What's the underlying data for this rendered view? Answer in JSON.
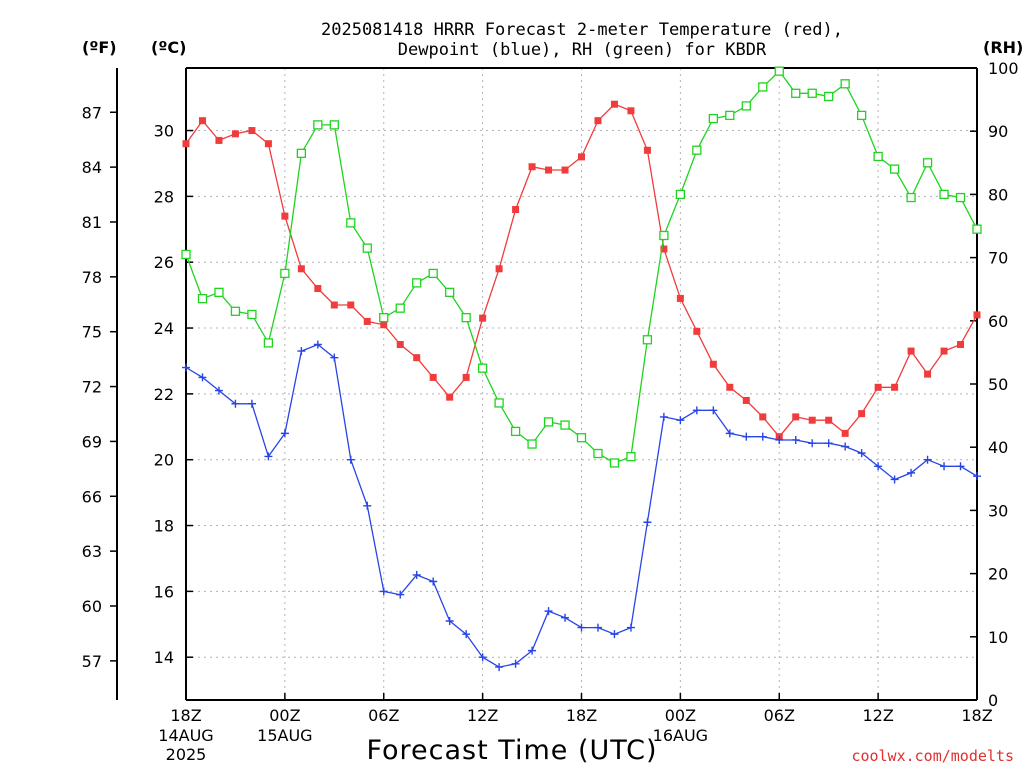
{
  "chart_data": {
    "type": "line",
    "title_line1": "2025081418 HRRR Forecast 2-meter Temperature (red),",
    "title_line2": "Dewpoint (blue), RH (green) for KBDR",
    "left_unit_f": "(ºF)",
    "left_unit_c": "(ºC)",
    "right_unit": "(RH)",
    "xlabel": "Forecast Time (UTC)",
    "watermark": "coolwx.com/modelts",
    "x_ticks": [
      {
        "h": 0,
        "label": "18Z",
        "sub": [
          "14AUG",
          "2025"
        ]
      },
      {
        "h": 6,
        "label": "00Z",
        "sub": [
          "15AUG"
        ]
      },
      {
        "h": 12,
        "label": "06Z",
        "sub": []
      },
      {
        "h": 18,
        "label": "12Z",
        "sub": []
      },
      {
        "h": 24,
        "label": "18Z",
        "sub": []
      },
      {
        "h": 30,
        "label": "00Z",
        "sub": [
          "16AUG"
        ]
      },
      {
        "h": 36,
        "label": "06Z",
        "sub": []
      },
      {
        "h": 42,
        "label": "12Z",
        "sub": []
      },
      {
        "h": 48,
        "label": "18Z",
        "sub": []
      }
    ],
    "x_range_hours": [
      0,
      48
    ],
    "c_ticks": [
      14,
      16,
      18,
      20,
      22,
      24,
      26,
      28,
      30
    ],
    "c_range": [
      12.7,
      31.9
    ],
    "f_ticks": [
      57,
      60,
      63,
      66,
      69,
      72,
      75,
      78,
      81,
      84,
      87
    ],
    "rh_ticks": [
      0,
      10,
      20,
      30,
      40,
      50,
      60,
      70,
      80,
      90,
      100
    ],
    "rh_range": [
      0,
      100
    ],
    "grid": true,
    "series": [
      {
        "key": "temperature",
        "units": "C",
        "color": "#f03c3c",
        "marker": "filled-square",
        "x": [
          0,
          1,
          2,
          3,
          4,
          5,
          6,
          7,
          8,
          9,
          10,
          11,
          12,
          13,
          14,
          15,
          16,
          17,
          18,
          19,
          20,
          21,
          22,
          23,
          24,
          25,
          26,
          27,
          28,
          29,
          30,
          31,
          32,
          33,
          34,
          35,
          36,
          37,
          38,
          39,
          40,
          41,
          42,
          43,
          44,
          45,
          46,
          47,
          48
        ],
        "values": [
          29.6,
          30.3,
          29.7,
          29.9,
          30.0,
          29.6,
          27.4,
          25.8,
          25.2,
          24.7,
          24.7,
          24.2,
          24.1,
          23.5,
          23.1,
          22.5,
          21.9,
          22.5,
          24.3,
          25.8,
          27.6,
          28.9,
          28.8,
          28.8,
          29.2,
          30.3,
          30.8,
          30.6,
          29.4,
          26.4,
          24.9,
          23.9,
          22.9,
          22.2,
          21.8,
          21.3,
          20.7,
          21.3,
          21.2,
          21.2,
          20.8,
          21.4,
          22.2,
          22.2,
          23.3,
          22.6,
          23.3,
          23.5,
          24.4
        ]
      },
      {
        "key": "dewpoint",
        "units": "C",
        "color": "#2845e6",
        "marker": "plus",
        "x": [
          0,
          1,
          2,
          3,
          4,
          5,
          6,
          7,
          8,
          9,
          10,
          11,
          12,
          13,
          14,
          15,
          16,
          17,
          18,
          19,
          20,
          21,
          22,
          23,
          24,
          25,
          26,
          27,
          28,
          29,
          30,
          31,
          32,
          33,
          34,
          35,
          36,
          37,
          38,
          39,
          40,
          41,
          42,
          43,
          44,
          45,
          46,
          47,
          48
        ],
        "values": [
          22.8,
          22.5,
          22.1,
          21.7,
          21.7,
          20.1,
          20.8,
          23.3,
          23.5,
          23.1,
          20.0,
          18.6,
          16.0,
          15.9,
          16.5,
          16.3,
          15.1,
          14.7,
          14.0,
          13.7,
          13.8,
          14.2,
          15.4,
          15.2,
          14.9,
          14.9,
          14.7,
          14.9,
          18.1,
          21.3,
          21.2,
          21.5,
          21.5,
          20.8,
          20.7,
          20.7,
          20.6,
          20.6,
          20.5,
          20.5,
          20.4,
          20.2,
          19.8,
          19.4,
          19.6,
          20.0,
          19.8,
          19.8,
          19.5
        ]
      },
      {
        "key": "relative_humidity",
        "units": "%",
        "color": "#1fd41f",
        "marker": "open-square",
        "x": [
          0,
          1,
          2,
          3,
          4,
          5,
          6,
          7,
          8,
          9,
          10,
          11,
          12,
          13,
          14,
          15,
          16,
          17,
          18,
          19,
          20,
          21,
          22,
          23,
          24,
          25,
          26,
          27,
          28,
          29,
          30,
          31,
          32,
          33,
          34,
          35,
          36,
          37,
          38,
          39,
          40,
          41,
          42,
          43,
          44,
          45,
          46,
          47,
          48
        ],
        "values": [
          70.5,
          63.5,
          64.5,
          61.5,
          61.0,
          56.5,
          67.5,
          86.5,
          91.0,
          91.0,
          75.5,
          71.5,
          60.5,
          62.0,
          66.0,
          67.5,
          64.5,
          60.5,
          52.5,
          47.0,
          42.5,
          40.5,
          44.0,
          43.5,
          41.5,
          39.0,
          37.5,
          38.5,
          57.0,
          73.5,
          80.0,
          87.0,
          92.0,
          92.5,
          94.0,
          97.0,
          99.5,
          96.0,
          96.0,
          95.5,
          97.5,
          92.5,
          86.0,
          84.0,
          79.5,
          85.0,
          80.0,
          79.5,
          74.5
        ]
      }
    ]
  }
}
